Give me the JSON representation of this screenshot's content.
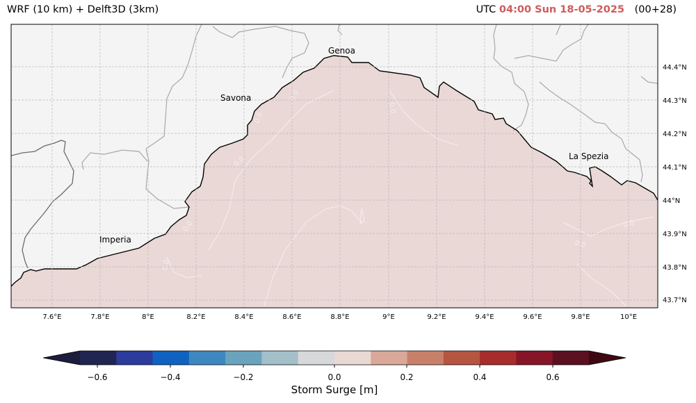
{
  "header": {
    "left_title": "WRF (10 km) + Delft3D (3km)",
    "utc_prefix": "UTC",
    "datetime": "04:00 Sun 18-05-2025",
    "lead": "(00+28)"
  },
  "map": {
    "lon_ticks": [
      "7.6°E",
      "7.8°E",
      "8°E",
      "8.2°E",
      "8.4°E",
      "8.6°E",
      "8.8°E",
      "9°E",
      "9.2°E",
      "9.4°E",
      "9.6°E",
      "9.8°E",
      "10°E"
    ],
    "lat_ticks": [
      "44.4°N",
      "44.3°N",
      "44.2°N",
      "44.1°N",
      "44°N",
      "43.9°N",
      "43.8°N",
      "43.7°N"
    ],
    "cities": [
      "Genoa",
      "Savona",
      "La Spezia",
      "Imperia"
    ],
    "contour_label": "0.0",
    "colors": {
      "land": "#f4f4f4",
      "sea": "#e9d8d5",
      "coast": "#000000",
      "border": "#a0a0a0",
      "contour": "#f7eeee"
    }
  },
  "colorbar": {
    "label": "Storm Surge [m]",
    "ticks": [
      "−0.6",
      "−0.4",
      "−0.2",
      "0.0",
      "0.2",
      "0.4",
      "0.6"
    ],
    "colors": [
      "#1c1c3c",
      "#202552",
      "#2b3c9c",
      "#1062c0",
      "#3d88c0",
      "#6aa3bd",
      "#a3bfca",
      "#d6d8da",
      "#ead8d4",
      "#d9a898",
      "#c9806a",
      "#b65540",
      "#a72c2c",
      "#861528",
      "#5a1020",
      "#3d0a14"
    ]
  }
}
